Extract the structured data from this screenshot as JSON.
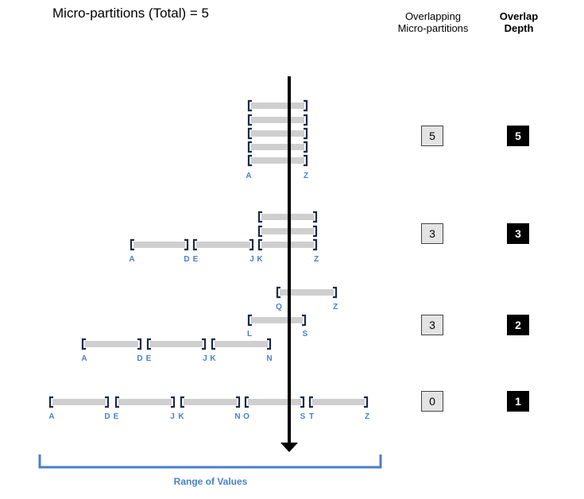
{
  "title": "Micro-partitions (Total) = 5",
  "headers": {
    "overlapping_line1": "Overlapping",
    "overlapping_line2": "Micro-partitions",
    "depth_line1": "Overlap",
    "depth_line2": "Depth"
  },
  "rows": [
    {
      "overlapping": "5",
      "depth": "5"
    },
    {
      "overlapping": "3",
      "depth": "3"
    },
    {
      "overlapping": "3",
      "depth": "2"
    },
    {
      "overlapping": "0",
      "depth": "1"
    }
  ],
  "range_label": "Range of Values",
  "colors": {
    "label_blue": "#4a7fc8",
    "bar_grey": "#cfcfcf",
    "bracket_navy": "#1b2a4a",
    "axis": "#000000"
  },
  "labels": {
    "g1": [
      "A",
      "Z"
    ],
    "g2": [
      "A",
      "D",
      "E",
      "J",
      "K",
      "Z"
    ],
    "g3a": [
      "Q",
      "Z"
    ],
    "g3b": [
      "L",
      "S"
    ],
    "g3c": [
      "A",
      "D",
      "E",
      "J",
      "K",
      "N"
    ],
    "g4": [
      "A",
      "D",
      "E",
      "J",
      "K",
      "N",
      "O",
      "S",
      "T",
      "Z"
    ]
  }
}
